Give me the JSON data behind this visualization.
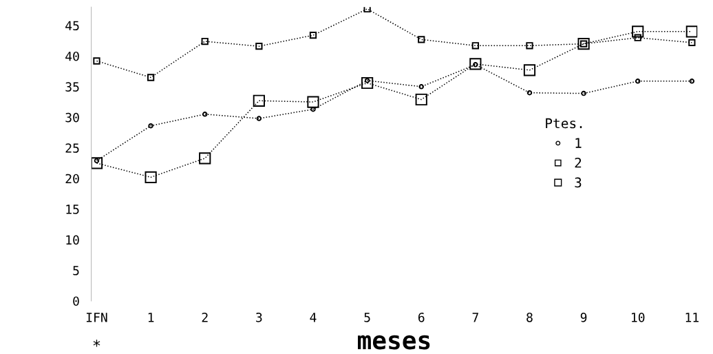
{
  "chart_data": {
    "type": "line",
    "xlabel": "meses",
    "legend_title": "Ptes.",
    "legend": "center right",
    "grid": false,
    "line_style": "dotted",
    "categories": [
      "IFN",
      "1",
      "2",
      "3",
      "4",
      "5",
      "6",
      "7",
      "8",
      "9",
      "10",
      "11"
    ],
    "ylim": [
      0,
      48
    ],
    "yticks": [
      0,
      5,
      10,
      15,
      20,
      25,
      30,
      35,
      40,
      45
    ],
    "annotations": [
      "*"
    ],
    "series": [
      {
        "name": "1",
        "color": "#000000",
        "marker": "circle",
        "values": [
          22.9,
          28.6,
          30.5,
          29.8,
          31.3,
          36,
          35,
          38.6,
          34,
          33.9,
          35.9,
          35.9
        ]
      },
      {
        "name": "2",
        "color": "#000000",
        "marker": "square",
        "values": [
          39.2,
          36.5,
          42.4,
          41.6,
          43.4,
          47.7,
          42.7,
          41.7,
          41.7,
          42,
          43,
          42.2
        ]
      },
      {
        "name": "3",
        "color": "#000000",
        "marker": "square",
        "values": [
          22.5,
          20.2,
          23.3,
          32.7,
          32.5,
          35.6,
          32.9,
          38.7,
          37.7,
          42,
          44,
          44
        ]
      }
    ]
  }
}
